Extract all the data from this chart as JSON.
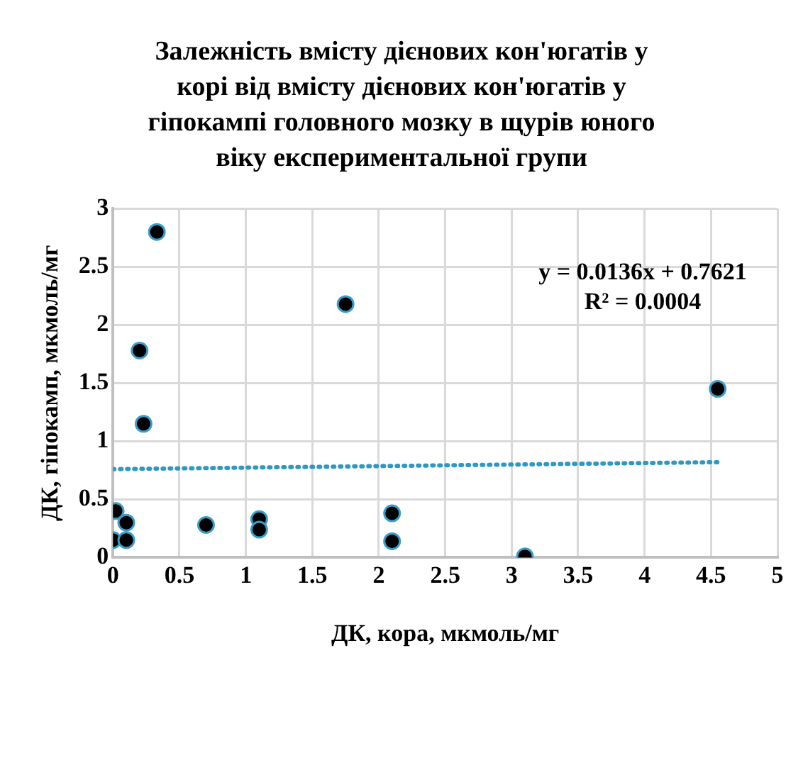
{
  "chart_data": {
    "type": "scatter",
    "title": "Залежність вмісту дієнових кон'югатів у корі від вмісту дієнових кон'югатів у гіпокампі головного мозку в щурів юного віку експериментальної групи",
    "xlabel": "ДК, кора, мкмоль/мг",
    "ylabel": "ДК, гіпокамп, мкмоль/мг",
    "series": [
      {
        "type": "scatter",
        "color": "#000000",
        "x": [
          0.02,
          0.1,
          0.0,
          0.1,
          0.2,
          0.23,
          0.33,
          0.7,
          1.1,
          1.1,
          1.75,
          2.1,
          2.1,
          3.1,
          4.55
        ],
        "values": [
          0.4,
          0.3,
          0.15,
          0.15,
          1.78,
          1.15,
          2.8,
          0.28,
          0.33,
          0.24,
          2.18,
          0.38,
          0.14,
          0.01,
          1.45
        ]
      },
      {
        "type": "line",
        "color": "#2e97c4",
        "line_style": "dotted",
        "marker": "none",
        "x": [
          0,
          4.55
        ],
        "values": [
          0.76,
          0.82
        ]
      }
    ],
    "annotations": [
      "y = 0.0136x + 0.7621\nR² = 0.0004"
    ],
    "marker": "circle",
    "xlim": [
      0,
      5
    ],
    "ylim": [
      0,
      3
    ],
    "xticks": [
      0,
      0.5,
      1,
      1.5,
      2,
      2.5,
      3,
      3.5,
      4,
      4.5,
      5
    ],
    "yticks": [
      0,
      0.5,
      1,
      1.5,
      2,
      2.5,
      3
    ],
    "grid": true,
    "legend": false
  }
}
